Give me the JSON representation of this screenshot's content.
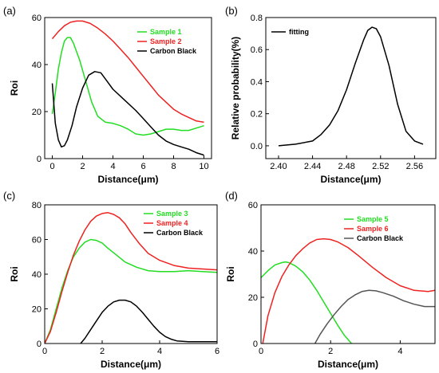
{
  "chart_data": [
    {
      "panel": "(a)",
      "type": "line",
      "xlabel": "Distance(μm)",
      "ylabel": "Roi",
      "xlim": [
        -0.5,
        10.5
      ],
      "ylim": [
        0,
        60
      ],
      "x_ticks": [
        0,
        2,
        4,
        6,
        8,
        10
      ],
      "y_ticks": [
        0,
        20,
        40,
        60
      ],
      "legend_position": "top-right",
      "series": [
        {
          "name": "Sample 1",
          "color": "#22dd22",
          "x": [
            0,
            0.2,
            0.4,
            0.6,
            0.8,
            1.0,
            1.2,
            1.4,
            1.8,
            2.2,
            2.6,
            3.0,
            3.5,
            4.0,
            4.5,
            5.0,
            5.5,
            6.0,
            6.5,
            7.0,
            7.5,
            8.0,
            8.5,
            9.0,
            9.5,
            10.0
          ],
          "y": [
            19,
            28,
            38,
            45,
            50,
            51.5,
            51.5,
            49,
            42,
            33,
            24,
            18,
            15.5,
            15,
            14,
            12.5,
            10.5,
            10,
            10.5,
            11.5,
            12.5,
            12.5,
            12,
            12,
            13,
            14
          ]
        },
        {
          "name": "Sample 2",
          "color": "#ee2222",
          "x": [
            0,
            0.4,
            0.8,
            1.2,
            1.6,
            2.0,
            2.5,
            3.0,
            3.5,
            4.0,
            4.5,
            5.0,
            5.5,
            6.0,
            6.5,
            7.0,
            7.5,
            8.0,
            8.5,
            9.0,
            9.5,
            10.0
          ],
          "y": [
            51,
            54,
            56.5,
            58,
            58.5,
            58.5,
            57.5,
            55.5,
            53,
            50,
            46.5,
            43,
            39,
            35,
            31,
            27,
            24,
            21,
            19,
            17.5,
            16,
            15.5
          ]
        },
        {
          "name": "Carbon Black",
          "color": "#000000",
          "x": [
            0,
            0.2,
            0.4,
            0.6,
            0.8,
            1.0,
            1.3,
            1.6,
            2.0,
            2.4,
            2.8,
            3.2,
            3.6,
            4.0,
            4.5,
            5.0,
            5.5,
            6.0,
            6.5,
            7.0,
            7.5,
            8.0,
            8.5,
            9.0,
            9.5,
            10.0
          ],
          "y": [
            32,
            15,
            8,
            5,
            5.5,
            8,
            14,
            22,
            30,
            35.5,
            37,
            36.5,
            33,
            29.5,
            26.5,
            23.5,
            20.5,
            17,
            13.5,
            10,
            7.5,
            6,
            5,
            4,
            2.5,
            1.5
          ]
        }
      ]
    },
    {
      "panel": "(b)",
      "type": "line",
      "xlabel": "Distance(μm)",
      "ylabel": "Relative probability(%)",
      "xlim": [
        2.385,
        2.585
      ],
      "ylim": [
        -0.08,
        0.8
      ],
      "x_ticks": [
        2.4,
        2.44,
        2.48,
        2.52,
        2.56
      ],
      "x_tick_labels": [
        "2.40",
        "2.44",
        "2.48",
        "2.52",
        "2.56"
      ],
      "y_ticks": [
        0.0,
        0.2,
        0.4,
        0.6,
        0.8
      ],
      "y_tick_labels": [
        "0.0",
        "0.2",
        "0.4",
        "0.6",
        "0.8"
      ],
      "legend_position": "top-left",
      "series": [
        {
          "name": "fitting",
          "color": "#000000",
          "x": [
            2.4,
            2.42,
            2.44,
            2.45,
            2.46,
            2.47,
            2.48,
            2.49,
            2.5,
            2.505,
            2.51,
            2.515,
            2.52,
            2.53,
            2.54,
            2.55,
            2.56,
            2.57
          ],
          "y": [
            0.0,
            0.01,
            0.03,
            0.07,
            0.13,
            0.22,
            0.35,
            0.51,
            0.66,
            0.72,
            0.74,
            0.73,
            0.68,
            0.5,
            0.26,
            0.09,
            0.03,
            0.01
          ]
        }
      ]
    },
    {
      "panel": "(c)",
      "type": "line",
      "xlabel": "Distance(μm)",
      "ylabel": "Roi",
      "xlim": [
        0,
        6
      ],
      "ylim": [
        0,
        80
      ],
      "x_ticks": [
        0,
        2,
        4,
        6
      ],
      "y_ticks": [
        0,
        20,
        40,
        60,
        80
      ],
      "legend_position": "top-right",
      "series": [
        {
          "name": "Sample 3",
          "color": "#22dd22",
          "x": [
            0,
            0.2,
            0.4,
            0.6,
            0.8,
            1.0,
            1.2,
            1.4,
            1.6,
            1.8,
            2.0,
            2.2,
            2.5,
            2.8,
            3.2,
            3.6,
            4.0,
            4.5,
            5.0,
            5.5,
            6.0
          ],
          "y": [
            0,
            8,
            20,
            32,
            42,
            50,
            55,
            58.5,
            60,
            59.5,
            58,
            55,
            51,
            47,
            44,
            42,
            41.5,
            41.5,
            42,
            41.5,
            41
          ]
        },
        {
          "name": "Sample 4",
          "color": "#ee2222",
          "x": [
            0,
            0.2,
            0.4,
            0.6,
            0.8,
            1.0,
            1.2,
            1.4,
            1.6,
            1.8,
            2.0,
            2.2,
            2.4,
            2.6,
            2.8,
            3.0,
            3.3,
            3.6,
            4.0,
            4.5,
            5.0,
            5.5,
            6.0
          ],
          "y": [
            0,
            7,
            18,
            30,
            41,
            51,
            59,
            65.5,
            70.5,
            73.5,
            75,
            75.5,
            74.5,
            72.5,
            69,
            64,
            57.5,
            52,
            48,
            45,
            43.5,
            43,
            42.5
          ]
        },
        {
          "name": "Carbon Black",
          "color": "#000000",
          "x": [
            1.25,
            1.4,
            1.6,
            1.8,
            2.0,
            2.2,
            2.4,
            2.6,
            2.8,
            3.0,
            3.2,
            3.4,
            3.6,
            3.8,
            4.0,
            4.2,
            4.4,
            4.6,
            5.0,
            5.5,
            6.0
          ],
          "y": [
            0,
            3,
            8,
            13,
            18,
            21.5,
            24,
            25,
            25,
            24,
            21.5,
            18,
            14,
            10,
            6.5,
            4,
            2.5,
            1.5,
            1,
            1,
            1
          ]
        }
      ]
    },
    {
      "panel": "(d)",
      "type": "line",
      "xlabel": "Distance(μm)",
      "ylabel": "Roi",
      "xlim": [
        0,
        5
      ],
      "ylim": [
        0,
        60
      ],
      "x_ticks": [
        0,
        2,
        4
      ],
      "y_ticks": [
        0,
        20,
        40,
        60
      ],
      "legend_position": "top-right",
      "series": [
        {
          "name": "Sample 5",
          "color": "#22dd22",
          "x": [
            0,
            0.2,
            0.4,
            0.6,
            0.7,
            0.8,
            1.0,
            1.2,
            1.4,
            1.6,
            1.8,
            2.0,
            2.2,
            2.4,
            2.6
          ],
          "y": [
            28.5,
            31.5,
            34,
            35,
            35.3,
            35,
            33.5,
            31,
            27.5,
            23,
            18,
            13,
            8,
            3.5,
            0
          ]
        },
        {
          "name": "Sample 6",
          "color": "#ee2222",
          "x": [
            0.05,
            0.2,
            0.4,
            0.6,
            0.8,
            1.0,
            1.2,
            1.4,
            1.6,
            1.8,
            2.0,
            2.2,
            2.5,
            2.8,
            3.2,
            3.6,
            4.0,
            4.4,
            4.8,
            5.0
          ],
          "y": [
            0,
            12,
            22,
            29,
            34,
            38,
            41,
            43.5,
            45,
            45.3,
            45,
            44,
            41.5,
            38,
            33,
            28.5,
            25,
            23,
            22.5,
            23
          ]
        },
        {
          "name": "Carbon Black",
          "color": "#555555",
          "x": [
            1.55,
            1.7,
            1.9,
            2.1,
            2.3,
            2.5,
            2.7,
            2.9,
            3.1,
            3.3,
            3.5,
            3.8,
            4.1,
            4.4,
            4.7,
            5.0
          ],
          "y": [
            0,
            4,
            8.5,
            12.5,
            16,
            19,
            21,
            22.5,
            23,
            22.8,
            22,
            20.5,
            18.5,
            17,
            16,
            16
          ]
        }
      ]
    }
  ]
}
